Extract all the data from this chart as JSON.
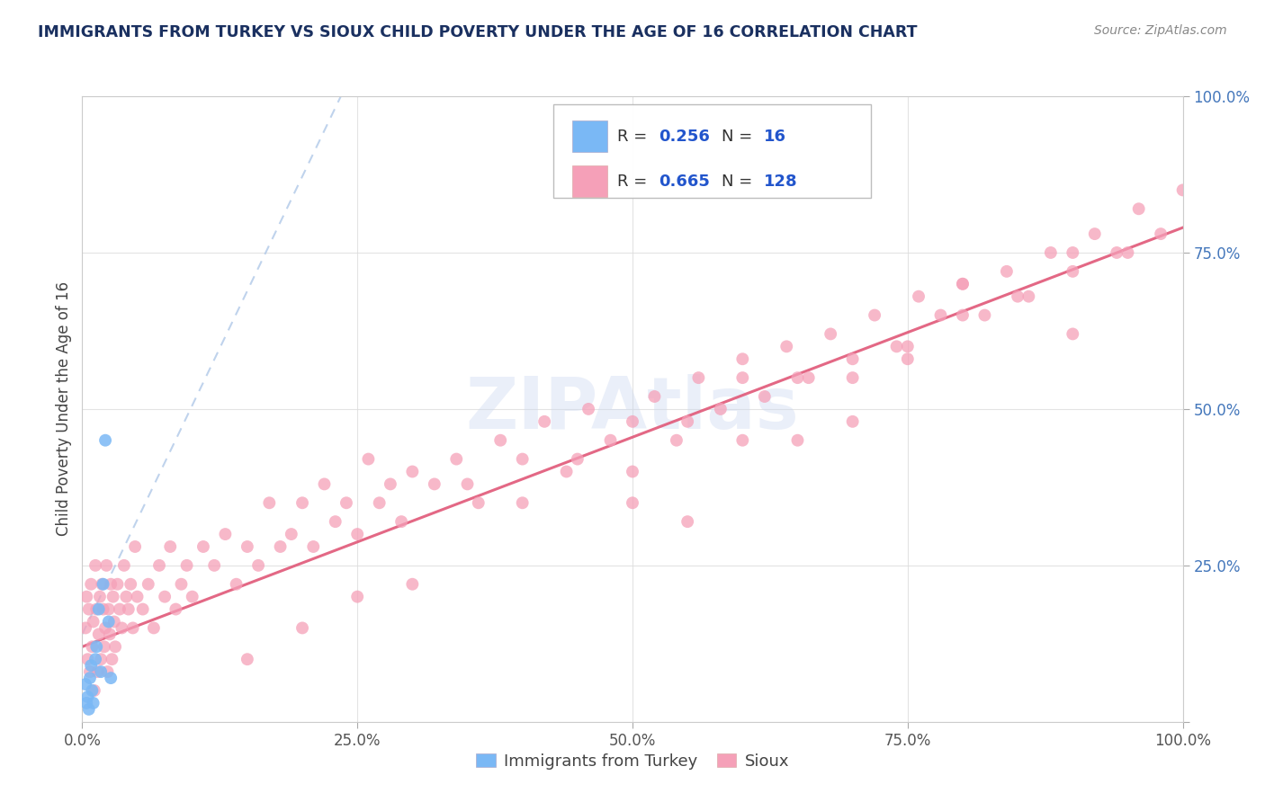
{
  "title": "IMMIGRANTS FROM TURKEY VS SIOUX CHILD POVERTY UNDER THE AGE OF 16 CORRELATION CHART",
  "source": "Source: ZipAtlas.com",
  "ylabel": "Child Poverty Under the Age of 16",
  "color_turkey": "#7ab8f5",
  "color_sioux": "#f5a0b8",
  "trend_color_turkey": "#b0c8e8",
  "trend_color_sioux": "#e05878",
  "watermark_color": "#ccd8f0",
  "xticks": [
    0.0,
    0.25,
    0.5,
    0.75,
    1.0
  ],
  "yticks": [
    0.0,
    0.25,
    0.5,
    0.75,
    1.0
  ],
  "xticklabels": [
    "0.0%",
    "25.0%",
    "50.0%",
    "75.0%",
    "100.0%"
  ],
  "yticklabels": [
    "",
    "25.0%",
    "50.0%",
    "75.0%",
    "100.0%"
  ],
  "turkey_trend_x": [
    0.0,
    0.235
  ],
  "turkey_trend_y": [
    0.14,
    1.0
  ],
  "sioux_trend_x": [
    0.0,
    1.0
  ],
  "sioux_trend_y": [
    0.12,
    0.79
  ],
  "turkey_x": [
    0.003,
    0.004,
    0.005,
    0.006,
    0.007,
    0.008,
    0.009,
    0.01,
    0.012,
    0.013,
    0.015,
    0.017,
    0.019,
    0.021,
    0.024,
    0.026
  ],
  "turkey_y": [
    0.06,
    0.03,
    0.04,
    0.02,
    0.07,
    0.09,
    0.05,
    0.03,
    0.1,
    0.12,
    0.18,
    0.08,
    0.22,
    0.45,
    0.16,
    0.07
  ],
  "sioux_x": [
    0.003,
    0.004,
    0.005,
    0.006,
    0.007,
    0.008,
    0.009,
    0.01,
    0.011,
    0.012,
    0.013,
    0.014,
    0.015,
    0.016,
    0.017,
    0.018,
    0.019,
    0.02,
    0.021,
    0.022,
    0.023,
    0.024,
    0.025,
    0.026,
    0.027,
    0.028,
    0.029,
    0.03,
    0.032,
    0.034,
    0.036,
    0.038,
    0.04,
    0.042,
    0.044,
    0.046,
    0.048,
    0.05,
    0.055,
    0.06,
    0.065,
    0.07,
    0.075,
    0.08,
    0.085,
    0.09,
    0.095,
    0.1,
    0.11,
    0.12,
    0.13,
    0.14,
    0.15,
    0.16,
    0.17,
    0.18,
    0.19,
    0.2,
    0.21,
    0.22,
    0.23,
    0.24,
    0.25,
    0.26,
    0.27,
    0.28,
    0.29,
    0.3,
    0.32,
    0.34,
    0.36,
    0.38,
    0.4,
    0.42,
    0.44,
    0.46,
    0.48,
    0.5,
    0.52,
    0.54,
    0.56,
    0.58,
    0.6,
    0.62,
    0.64,
    0.66,
    0.68,
    0.7,
    0.72,
    0.74,
    0.76,
    0.78,
    0.8,
    0.82,
    0.84,
    0.86,
    0.88,
    0.9,
    0.92,
    0.94,
    0.96,
    0.98,
    1.0,
    0.35,
    0.45,
    0.55,
    0.65,
    0.75,
    0.85,
    0.95,
    0.5,
    0.6,
    0.7,
    0.8,
    0.9,
    0.4,
    0.6,
    0.8,
    0.2,
    0.3,
    0.5,
    0.7,
    0.9,
    0.15,
    0.25,
    0.55,
    0.65,
    0.75
  ],
  "sioux_y": [
    0.15,
    0.2,
    0.1,
    0.18,
    0.08,
    0.22,
    0.12,
    0.16,
    0.05,
    0.25,
    0.18,
    0.08,
    0.14,
    0.2,
    0.1,
    0.22,
    0.18,
    0.12,
    0.15,
    0.25,
    0.08,
    0.18,
    0.14,
    0.22,
    0.1,
    0.2,
    0.16,
    0.12,
    0.22,
    0.18,
    0.15,
    0.25,
    0.2,
    0.18,
    0.22,
    0.15,
    0.28,
    0.2,
    0.18,
    0.22,
    0.15,
    0.25,
    0.2,
    0.28,
    0.18,
    0.22,
    0.25,
    0.2,
    0.28,
    0.25,
    0.3,
    0.22,
    0.28,
    0.25,
    0.35,
    0.28,
    0.3,
    0.35,
    0.28,
    0.38,
    0.32,
    0.35,
    0.3,
    0.42,
    0.35,
    0.38,
    0.32,
    0.4,
    0.38,
    0.42,
    0.35,
    0.45,
    0.42,
    0.48,
    0.4,
    0.5,
    0.45,
    0.48,
    0.52,
    0.45,
    0.55,
    0.5,
    0.58,
    0.52,
    0.6,
    0.55,
    0.62,
    0.58,
    0.65,
    0.6,
    0.68,
    0.65,
    0.7,
    0.65,
    0.72,
    0.68,
    0.75,
    0.72,
    0.78,
    0.75,
    0.82,
    0.78,
    0.85,
    0.38,
    0.42,
    0.48,
    0.55,
    0.6,
    0.68,
    0.75,
    0.4,
    0.45,
    0.55,
    0.65,
    0.75,
    0.35,
    0.55,
    0.7,
    0.15,
    0.22,
    0.35,
    0.48,
    0.62,
    0.1,
    0.2,
    0.32,
    0.45,
    0.58
  ]
}
